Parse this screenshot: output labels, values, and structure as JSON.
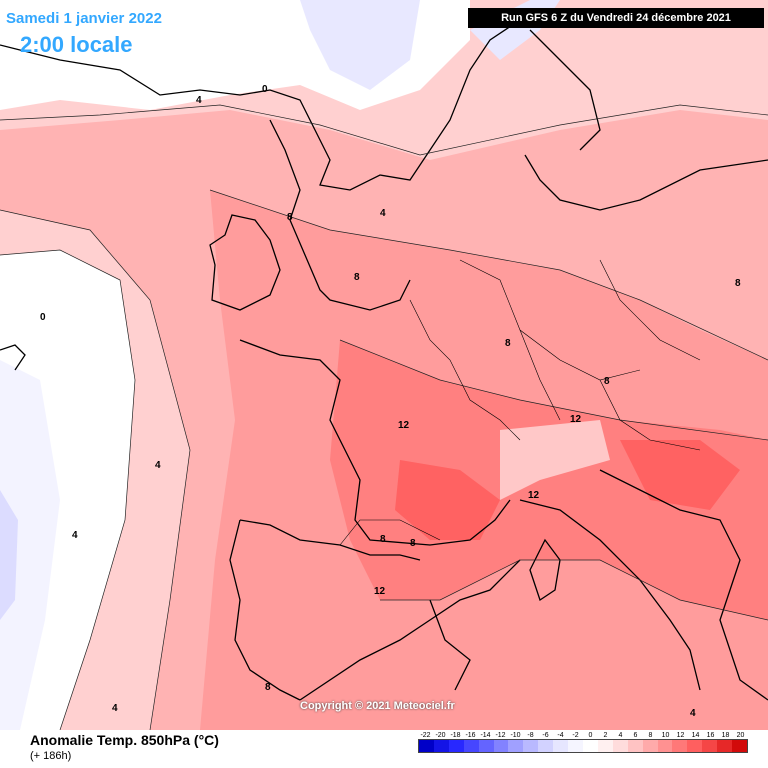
{
  "header": {
    "date_label": "Samedi 1 janvier 2022",
    "time_label": "2:00 locale",
    "run_label": "Run GFS 6 Z du Vendredi 24 décembre 2021"
  },
  "map": {
    "copyright": "Copyright © 2021 Meteociel.fr",
    "contour_labels": [
      {
        "text": "0"
      },
      {
        "text": "0"
      },
      {
        "text": "4"
      },
      {
        "text": "4"
      },
      {
        "text": "4"
      },
      {
        "text": "8"
      },
      {
        "text": "8"
      },
      {
        "text": "8"
      },
      {
        "text": "8"
      },
      {
        "text": "8"
      },
      {
        "text": "12"
      },
      {
        "text": "12"
      },
      {
        "text": "12"
      },
      {
        "text": "12"
      },
      {
        "text": "8"
      },
      {
        "text": "8"
      },
      {
        "text": "4"
      },
      {
        "text": "4"
      },
      {
        "text": "8"
      },
      {
        "text": "4"
      }
    ]
  },
  "footer": {
    "variable_title": "Anomalie Temp. 850hPa (°C)",
    "lead_time": "(+ 186h)"
  },
  "legend": {
    "ticks": [
      "-22",
      "-20",
      "-18",
      "-16",
      "-14",
      "-12",
      "-10",
      "-8",
      "-6",
      "-4",
      "-2",
      "0",
      "2",
      "4",
      "6",
      "8",
      "10",
      "12",
      "14",
      "16",
      "18",
      "20"
    ],
    "colors": [
      "#0000c8",
      "#1414e6",
      "#2828ff",
      "#4646ff",
      "#6464ff",
      "#8282ff",
      "#a0a0ff",
      "#b9b9ff",
      "#d2d2ff",
      "#e6e6ff",
      "#f5f5ff",
      "#ffffff",
      "#fff0f0",
      "#ffdcdc",
      "#ffc3c3",
      "#ffaaaa",
      "#ff9191",
      "#ff7878",
      "#ff5f5f",
      "#f54646",
      "#e62828",
      "#d20a0a"
    ]
  }
}
